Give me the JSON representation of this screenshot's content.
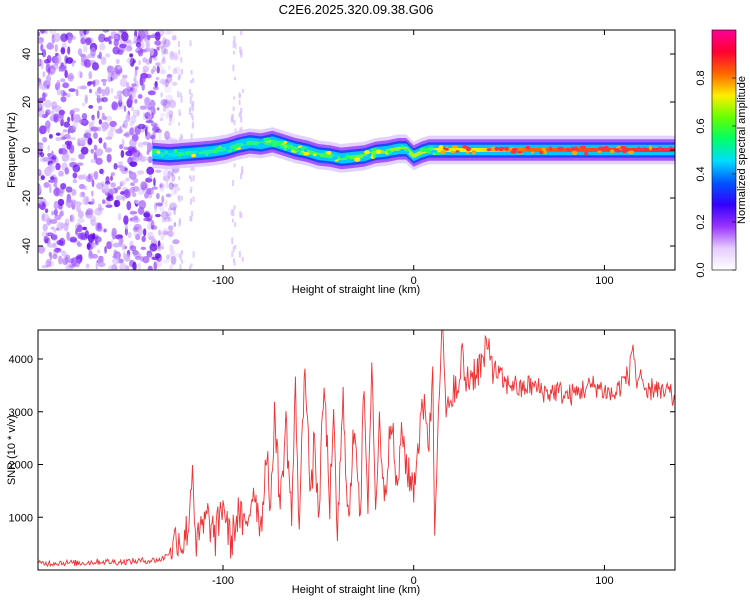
{
  "title": "C2E6.2025.320.09.38.G06",
  "colors": {
    "snr_line": "#ee3333",
    "axis": "#000000",
    "background": "#ffffff"
  },
  "chart_data": [
    {
      "type": "heatmap",
      "name": "spectrogram",
      "xlabel": "Height of straight line (km)",
      "ylabel": "Frequency (Hz)",
      "xlim": [
        -197,
        137
      ],
      "ylim": [
        -50,
        50
      ],
      "xticks": [
        -100,
        0,
        100
      ],
      "yticks": [
        -40,
        -20,
        0,
        20,
        40
      ],
      "grid": false,
      "noise_region_x": [
        -197,
        -128
      ],
      "signal_track": {
        "x": [
          -137,
          -128,
          -120,
          -112,
          -105,
          -98,
          -92,
          -86,
          -80,
          -74,
          -68,
          -62,
          -56,
          -50,
          -44,
          -38,
          -32,
          -26,
          -20,
          -14,
          -8,
          -4,
          0,
          4,
          8,
          14,
          20,
          40,
          60,
          80,
          100,
          120,
          137
        ],
        "freq": [
          -1.5,
          -2.0,
          -1.5,
          -1.0,
          -0.5,
          0.5,
          2.0,
          3.0,
          2.5,
          3.5,
          2.0,
          0.5,
          -0.5,
          -2.0,
          -2.5,
          -3.5,
          -3.0,
          -2.5,
          -1.0,
          -0.5,
          0.5,
          0.5,
          -2.5,
          -1.0,
          0.0,
          0.0,
          0.0,
          0.0,
          0.0,
          0.0,
          0.0,
          0.0,
          0.0
        ]
      },
      "colorbar": {
        "label": "Normalized spectral amplitude",
        "range": [
          0.0,
          1.0
        ],
        "ticks": [
          "0.0",
          "0.2",
          "0.4",
          "0.6",
          "0.8"
        ],
        "tick_values": [
          0.0,
          0.2,
          0.4,
          0.6,
          0.8
        ],
        "colormap": [
          "#ffffff",
          "#e6ccff",
          "#9933ff",
          "#3300ff",
          "#0055ff",
          "#00ddff",
          "#00ff66",
          "#66ff00",
          "#ffee00",
          "#ff6600",
          "#ff0033",
          "#ff0099"
        ]
      }
    },
    {
      "type": "line",
      "name": "snr",
      "xlabel": "Height of straight line (km)",
      "ylabel": "SNR (10 * v/v)",
      "xlim": [
        -197,
        137
      ],
      "ylim": [
        0,
        4550
      ],
      "xticks": [
        -100,
        0,
        100
      ],
      "yticks": [
        1000,
        2000,
        3000,
        4000
      ],
      "grid": false,
      "series": [
        {
          "name": "SNR",
          "x": [
            -197,
            -185,
            -175,
            -165,
            -155,
            -145,
            -138,
            -132,
            -128,
            -124,
            -121,
            -118,
            -116,
            -114,
            -112,
            -108,
            -104,
            -100,
            -96,
            -92,
            -88,
            -84,
            -80,
            -77,
            -75,
            -73,
            -70,
            -67,
            -64,
            -62,
            -60,
            -57,
            -54,
            -52,
            -50,
            -47,
            -44,
            -42,
            -40,
            -37,
            -34,
            -31,
            -28,
            -26,
            -24,
            -22,
            -20,
            -18,
            -15,
            -12,
            -9,
            -6,
            -3,
            0,
            3,
            6,
            8,
            10,
            11,
            13,
            15,
            17,
            19,
            21,
            23,
            25,
            27,
            30,
            33,
            36,
            38,
            40,
            42,
            45,
            48,
            52,
            56,
            60,
            65,
            70,
            75,
            80,
            85,
            90,
            95,
            100,
            105,
            110,
            113,
            115,
            117,
            119,
            121,
            124,
            127,
            130,
            133,
            137
          ],
          "values": [
            120,
            140,
            130,
            160,
            150,
            170,
            180,
            200,
            350,
            650,
            480,
            900,
            2000,
            400,
            700,
            1000,
            600,
            1300,
            500,
            1100,
            700,
            1600,
            800,
            2400,
            900,
            3100,
            1200,
            2800,
            1000,
            3400,
            800,
            4100,
            1200,
            2600,
            900,
            3500,
            1300,
            2700,
            700,
            3200,
            800,
            2900,
            1100,
            3500,
            800,
            4200,
            1100,
            2800,
            1300,
            3100,
            1500,
            2600,
            1800,
            1600,
            2600,
            3300,
            2300,
            3800,
            700,
            3400,
            4500,
            3000,
            2900,
            3700,
            3100,
            4100,
            3600,
            3700,
            3800,
            3900,
            4100,
            4200,
            3800,
            3700,
            3500,
            3550,
            3400,
            3500,
            3450,
            3350,
            3400,
            3300,
            3350,
            3450,
            3500,
            3400,
            3300,
            3600,
            3700,
            4300,
            3500,
            3800,
            3200,
            3400,
            3500,
            3300,
            3400,
            3200
          ]
        }
      ]
    }
  ]
}
